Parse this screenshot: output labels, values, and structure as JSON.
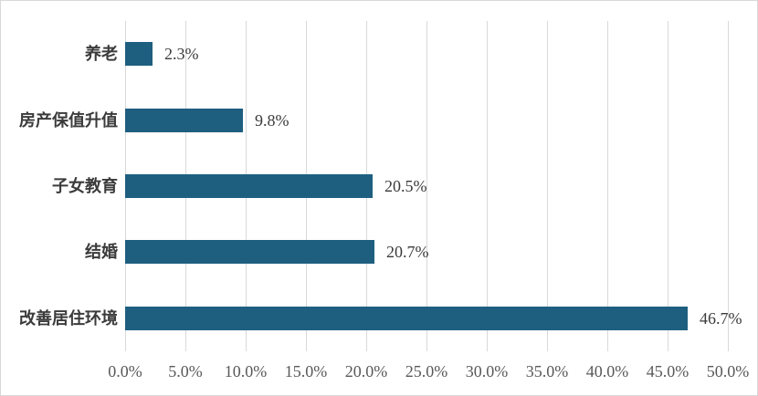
{
  "chart_data": {
    "type": "bar",
    "orientation": "horizontal",
    "title": "",
    "categories": [
      "养老",
      "房产保值升值",
      "子女教育",
      "结婚",
      "改善居住环境"
    ],
    "values": [
      2.3,
      9.8,
      20.5,
      20.7,
      46.7
    ],
    "data_labels": [
      "2.3%",
      "9.8%",
      "20.5%",
      "20.7%",
      "46.7%"
    ],
    "x_tick_values": [
      0,
      5,
      10,
      15,
      20,
      25,
      30,
      35,
      40,
      45,
      50
    ],
    "x_tick_labels": [
      "0.0%",
      "5.0%",
      "10.0%",
      "15.0%",
      "20.0%",
      "25.0%",
      "30.0%",
      "35.0%",
      "40.0%",
      "45.0%",
      "50.0%"
    ],
    "xlim": [
      0,
      50
    ],
    "xlabel": "",
    "ylabel": "",
    "grid": "vertical-only",
    "legend": "none",
    "colors": {
      "bar": "#1e5f80",
      "gridline": "#d9d9d9",
      "tick_label": "#595959",
      "category_label": "#3b3b3b",
      "data_label": "#3b3b3b",
      "frame_border": "#d8d8d8",
      "background": "#ffffff"
    }
  }
}
